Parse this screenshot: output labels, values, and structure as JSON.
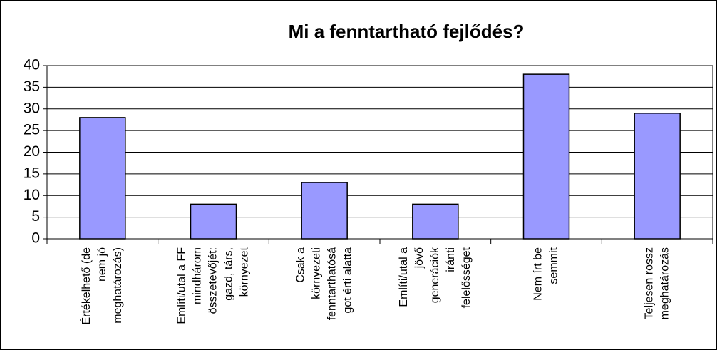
{
  "chart_data": {
    "type": "bar",
    "title": "Mi a fenntartható fejlődés?",
    "categories": [
      [
        "Értékelhető (de",
        "nem jó",
        "meghatározás)"
      ],
      [
        "Említi/utal a FF",
        "mindhárom",
        "összetevőjét:",
        "gazd, társ,",
        "környezet"
      ],
      [
        "Csak a",
        "környezeti",
        "fenntarthatósá",
        "got érti alatta"
      ],
      [
        "Említi/utal a",
        "jövő",
        "generációk",
        "iránti",
        "felelősséget"
      ],
      [
        "Nem írt be",
        "semmit"
      ],
      [
        "Teljesen rossz",
        "meghatározás"
      ]
    ],
    "values": [
      28,
      8,
      13,
      8,
      38,
      29
    ],
    "color": "#9999ff",
    "ylim": [
      0,
      40
    ],
    "yticks": [
      0,
      5,
      10,
      15,
      20,
      25,
      30,
      35,
      40
    ],
    "grid": true
  }
}
